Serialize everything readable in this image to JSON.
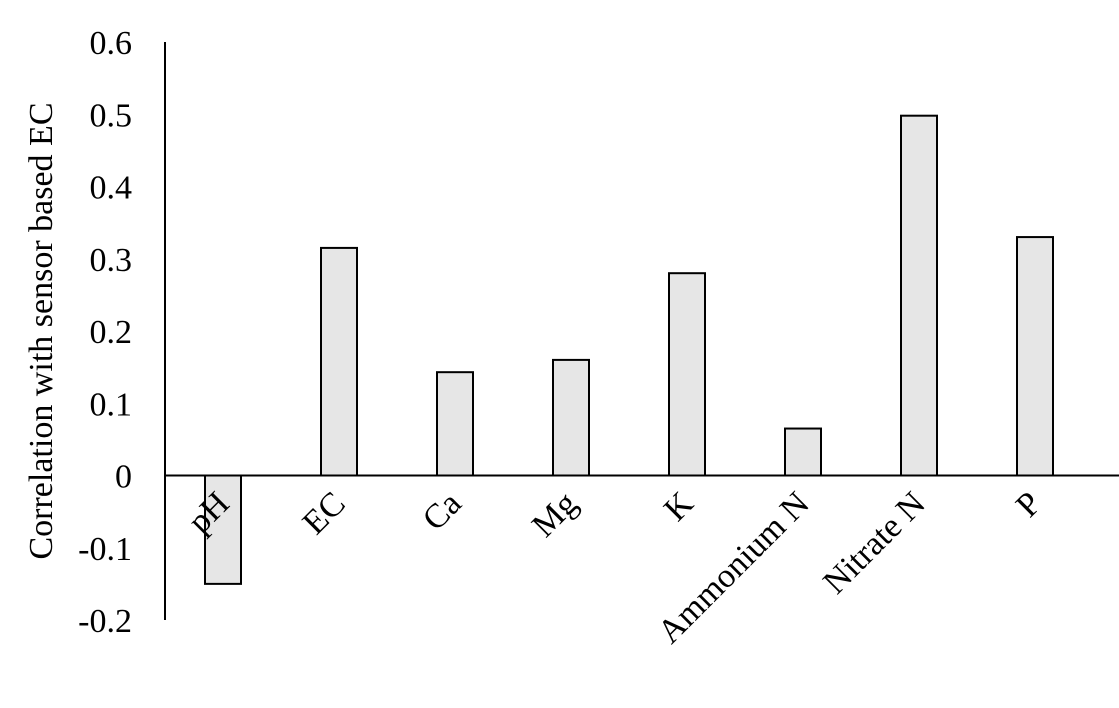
{
  "chart_data": {
    "type": "bar",
    "title": "",
    "xlabel": "",
    "ylabel": "Correlation with sensor based EC",
    "categories": [
      "pH",
      "EC",
      "Ca",
      "Mg",
      "K",
      "Ammonium N",
      "Nitrate N",
      "P"
    ],
    "values": [
      -0.15,
      0.315,
      0.143,
      0.16,
      0.28,
      0.065,
      0.498,
      0.33
    ],
    "ylim": [
      -0.2,
      0.6
    ],
    "yticks": [
      "-0.2",
      "-0.1",
      "0",
      "0.1",
      "0.2",
      "0.3",
      "0.4",
      "0.5",
      "0.6"
    ],
    "grid": false,
    "bar_fill": "#e6e6e6",
    "bar_stroke": "#000000"
  }
}
